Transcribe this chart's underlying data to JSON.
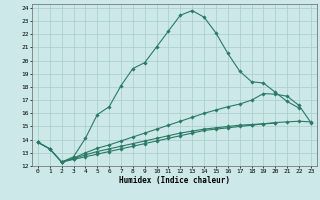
{
  "xlabel": "Humidex (Indice chaleur)",
  "bg_color": "#cce8e8",
  "line_color": "#2a7a65",
  "grid_color": "#a8cccc",
  "xlim": [
    -0.5,
    23.5
  ],
  "ylim": [
    12,
    24.3
  ],
  "xticks": [
    0,
    1,
    2,
    3,
    4,
    5,
    6,
    7,
    8,
    9,
    10,
    11,
    12,
    13,
    14,
    15,
    16,
    17,
    18,
    19,
    20,
    21,
    22,
    23
  ],
  "yticks": [
    12,
    13,
    14,
    15,
    16,
    17,
    18,
    19,
    20,
    21,
    22,
    23,
    24
  ],
  "curve1_x": [
    0,
    1,
    2,
    3,
    4,
    5,
    6,
    7,
    8,
    9,
    10,
    11,
    12,
    13,
    14,
    15,
    16,
    17,
    18,
    19,
    20,
    21,
    22
  ],
  "curve1_y": [
    13.8,
    13.3,
    12.3,
    12.7,
    14.1,
    15.9,
    16.5,
    18.1,
    19.4,
    19.85,
    21.05,
    22.25,
    23.45,
    23.8,
    23.3,
    22.1,
    20.55,
    19.2,
    18.4,
    18.3,
    17.6,
    16.9,
    16.4
  ],
  "curve2_x": [
    0,
    1,
    2,
    3,
    4,
    5,
    6,
    7,
    8,
    9,
    10,
    11,
    12,
    13,
    14,
    15,
    16,
    17,
    18,
    19,
    20,
    21,
    22,
    23
  ],
  "curve2_y": [
    13.8,
    13.3,
    12.3,
    12.5,
    12.7,
    12.9,
    13.1,
    13.3,
    13.5,
    13.7,
    13.9,
    14.1,
    14.3,
    14.5,
    14.7,
    14.8,
    14.9,
    15.0,
    15.1,
    15.2,
    15.3,
    15.35,
    15.4,
    15.35
  ],
  "curve3_x": [
    0,
    1,
    2,
    3,
    4,
    5,
    6,
    7,
    8,
    9,
    10,
    11,
    12,
    13,
    14,
    15,
    16,
    17,
    18,
    19,
    20,
    21,
    22,
    23
  ],
  "curve3_y": [
    13.8,
    13.3,
    12.3,
    12.6,
    13.0,
    13.35,
    13.6,
    13.9,
    14.2,
    14.5,
    14.8,
    15.1,
    15.4,
    15.7,
    16.0,
    16.25,
    16.5,
    16.7,
    17.0,
    17.5,
    17.45,
    17.3,
    16.6,
    15.3
  ],
  "curve4_x": [
    2,
    3,
    4,
    5,
    6,
    7,
    8,
    9,
    10,
    11,
    12,
    13,
    14,
    15,
    16,
    17,
    18,
    19,
    20
  ],
  "curve4_y": [
    12.3,
    12.55,
    12.85,
    13.1,
    13.3,
    13.5,
    13.7,
    13.9,
    14.1,
    14.3,
    14.5,
    14.65,
    14.8,
    14.9,
    15.0,
    15.1,
    15.15,
    15.2,
    15.25
  ]
}
